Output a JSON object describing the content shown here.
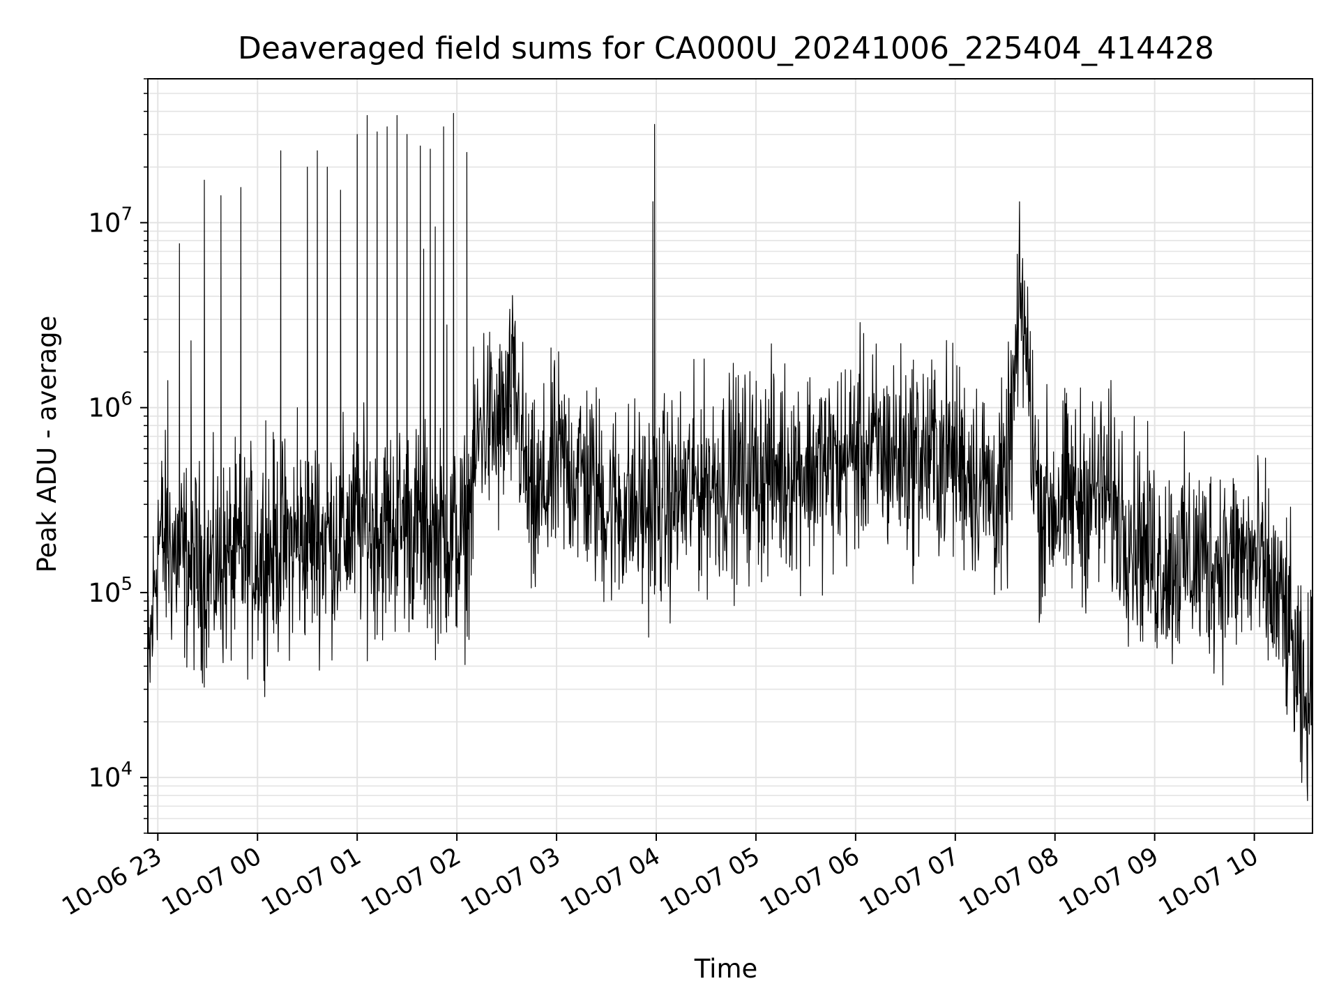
{
  "chart_data": {
    "type": "line",
    "title": "Deaveraged field sums for CA000U_20241006_225404_414428",
    "xlabel": "Time",
    "ylabel": "Peak ADU - average",
    "y_scale": "log",
    "grid": true,
    "legend": "none",
    "line_color": "#000000",
    "xlim": [
      "2024-10-06 22:54",
      "2024-10-07 10:35"
    ],
    "ylim": [
      5000,
      60000000
    ],
    "x_ticks": [
      {
        "value": "2024-10-06 23:00",
        "label": "10-06 23"
      },
      {
        "value": "2024-10-07 00:00",
        "label": "10-07 00"
      },
      {
        "value": "2024-10-07 01:00",
        "label": "10-07 01"
      },
      {
        "value": "2024-10-07 02:00",
        "label": "10-07 02"
      },
      {
        "value": "2024-10-07 03:00",
        "label": "10-07 03"
      },
      {
        "value": "2024-10-07 04:00",
        "label": "10-07 04"
      },
      {
        "value": "2024-10-07 05:00",
        "label": "10-07 05"
      },
      {
        "value": "2024-10-07 06:00",
        "label": "10-07 06"
      },
      {
        "value": "2024-10-07 07:00",
        "label": "10-07 07"
      },
      {
        "value": "2024-10-07 08:00",
        "label": "10-07 08"
      },
      {
        "value": "2024-10-07 09:00",
        "label": "10-07 09"
      },
      {
        "value": "2024-10-07 10:00",
        "label": "10-07 10"
      }
    ],
    "y_ticks": [
      {
        "value": 10000,
        "base": "10",
        "exp": "4"
      },
      {
        "value": 100000,
        "base": "10",
        "exp": "5"
      },
      {
        "value": 1000000,
        "base": "10",
        "exp": "6"
      },
      {
        "value": 10000000,
        "base": "10",
        "exp": "7"
      }
    ],
    "series": [
      {
        "baseline": [
          [
            "2024-10-06 22:54",
            30000
          ],
          [
            "2024-10-06 23:00",
            200000
          ],
          [
            "2024-10-06 23:15",
            150000
          ],
          [
            "2024-10-06 23:30",
            130000
          ],
          [
            "2024-10-06 23:45",
            150000
          ],
          [
            "2024-10-07 00:00",
            160000
          ],
          [
            "2024-10-07 00:15",
            180000
          ],
          [
            "2024-10-07 00:30",
            190000
          ],
          [
            "2024-10-07 00:45",
            200000
          ],
          [
            "2024-10-07 01:00",
            230000
          ],
          [
            "2024-10-07 01:15",
            210000
          ],
          [
            "2024-10-07 01:30",
            240000
          ],
          [
            "2024-10-07 01:45",
            200000
          ],
          [
            "2024-10-07 02:05",
            190000
          ],
          [
            "2024-10-07 02:15",
            900000
          ],
          [
            "2024-10-07 02:25",
            700000
          ],
          [
            "2024-10-07 02:35",
            1200000
          ],
          [
            "2024-10-07 02:45",
            250000
          ],
          [
            "2024-10-07 03:00",
            500000
          ],
          [
            "2024-10-07 03:15",
            450000
          ],
          [
            "2024-10-07 03:30",
            300000
          ],
          [
            "2024-10-07 04:00",
            280000
          ],
          [
            "2024-10-07 04:30",
            400000
          ],
          [
            "2024-10-07 05:00",
            450000
          ],
          [
            "2024-10-07 05:30",
            480000
          ],
          [
            "2024-10-07 05:50",
            480000
          ],
          [
            "2024-10-07 06:00",
            600000
          ],
          [
            "2024-10-07 06:30",
            550000
          ],
          [
            "2024-10-07 07:00",
            550000
          ],
          [
            "2024-10-07 07:30",
            300000
          ],
          [
            "2024-10-07 07:40",
            4000000
          ],
          [
            "2024-10-07 07:50",
            300000
          ],
          [
            "2024-10-07 08:00",
            300000
          ],
          [
            "2024-10-07 08:30",
            350000
          ],
          [
            "2024-10-07 09:00",
            150000
          ],
          [
            "2024-10-07 09:30",
            150000
          ],
          [
            "2024-10-07 10:00",
            150000
          ],
          [
            "2024-10-07 10:20",
            70000
          ],
          [
            "2024-10-07 10:30",
            20000
          ],
          [
            "2024-10-07 10:35",
            30000
          ]
        ],
        "spikes": [
          [
            "2024-10-06 23:06",
            1400000
          ],
          [
            "2024-10-06 23:13",
            7700000
          ],
          [
            "2024-10-06 23:20",
            2300000
          ],
          [
            "2024-10-06 23:28",
            17000000
          ],
          [
            "2024-10-06 23:38",
            14000000
          ],
          [
            "2024-10-06 23:50",
            15500000
          ],
          [
            "2024-10-07 00:05",
            850000
          ],
          [
            "2024-10-07 00:14",
            24500000
          ],
          [
            "2024-10-07 00:24",
            1000000
          ],
          [
            "2024-10-07 00:30",
            20000000
          ],
          [
            "2024-10-07 00:36",
            24500000
          ],
          [
            "2024-10-07 00:42",
            20000000
          ],
          [
            "2024-10-07 00:50",
            15000000
          ],
          [
            "2024-10-07 01:00",
            30000000
          ],
          [
            "2024-10-07 01:06",
            38000000
          ],
          [
            "2024-10-07 01:12",
            31000000
          ],
          [
            "2024-10-07 01:18",
            33000000
          ],
          [
            "2024-10-07 01:24",
            38000000
          ],
          [
            "2024-10-07 01:30",
            30000000
          ],
          [
            "2024-10-07 01:38",
            26000000
          ],
          [
            "2024-10-07 01:44",
            25000000
          ],
          [
            "2024-10-07 01:52",
            33000000
          ],
          [
            "2024-10-07 01:58",
            39000000
          ],
          [
            "2024-10-07 02:06",
            24000000
          ],
          [
            "2024-10-07 01:40",
            7200000
          ],
          [
            "2024-10-07 01:47",
            9500000
          ],
          [
            "2024-10-07 01:54",
            2800000
          ],
          [
            "2024-10-07 03:59",
            34000000
          ],
          [
            "2024-10-07 03:58",
            13000000
          ]
        ]
      }
    ]
  }
}
